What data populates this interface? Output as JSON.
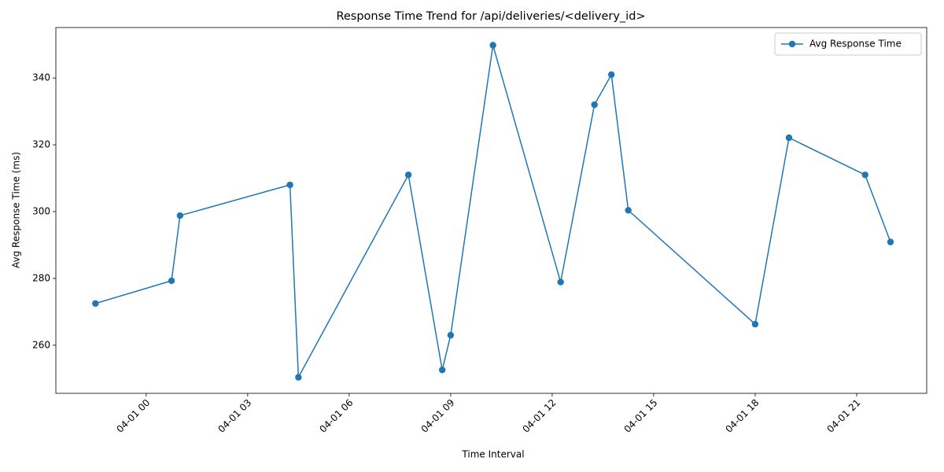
{
  "chart_data": {
    "type": "line",
    "title": "Response Time Trend for /api/deliveries/<delivery_id>",
    "xlabel": "Time Interval",
    "ylabel": "Avg Response Time (ms)",
    "x": [
      -1.5,
      0.75,
      1.0,
      4.25,
      4.5,
      7.75,
      8.75,
      9.0,
      10.25,
      12.25,
      13.25,
      13.75,
      14.25,
      18.0,
      19.0,
      21.25,
      22.0
    ],
    "series": [
      {
        "name": "Avg Response Time",
        "color": "#1f77b4",
        "values": [
          272.5,
          279.3,
          298.8,
          308,
          250.4,
          311,
          252.6,
          263,
          349.8,
          278.9,
          332,
          341,
          300.4,
          266.3,
          322.1,
          311,
          290.9
        ]
      }
    ],
    "xlim": [
      -2.67,
      23.07
    ],
    "ylim": [
      245.6,
      355.1
    ],
    "xticks": [
      {
        "value": 0,
        "label": "04-01 00"
      },
      {
        "value": 3,
        "label": "04-01 03"
      },
      {
        "value": 6,
        "label": "04-01 06"
      },
      {
        "value": 9,
        "label": "04-01 09"
      },
      {
        "value": 12,
        "label": "04-01 12"
      },
      {
        "value": 15,
        "label": "04-01 15"
      },
      {
        "value": 18,
        "label": "04-01 18"
      },
      {
        "value": 21,
        "label": "04-01 21"
      }
    ],
    "yticks": [
      260,
      280,
      300,
      320,
      340
    ],
    "legend": "upper right",
    "grid": false
  }
}
